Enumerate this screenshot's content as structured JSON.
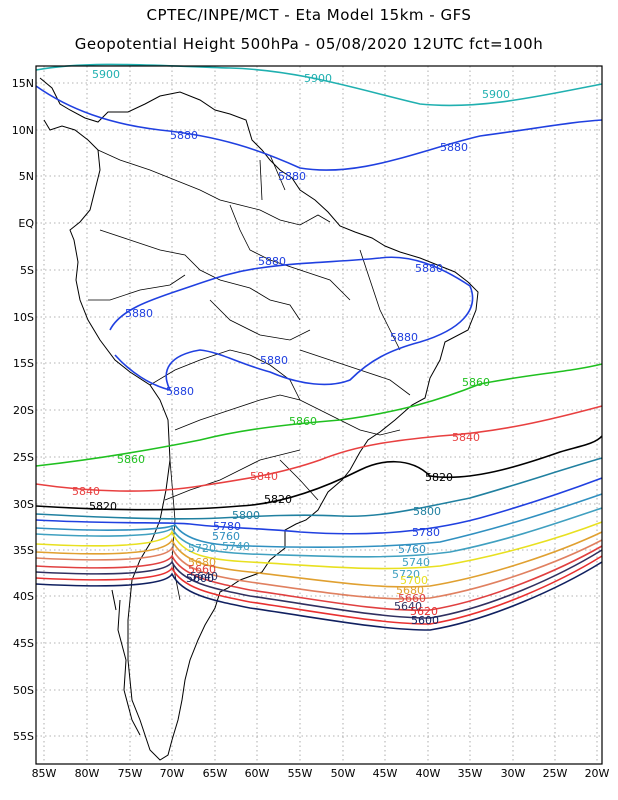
{
  "title_line1": "CPTEC/INPE/MCT -  Eta Model 15km - GFS",
  "title_line2": "Geopotential Height 500hPa - 05/08/2020 12UTC fct=100h",
  "lat_labels": [
    "15N",
    "10N",
    "5N",
    "EQ",
    "5S",
    "10S",
    "15S",
    "20S",
    "25S",
    "30S",
    "35S",
    "40S",
    "45S",
    "50S",
    "55S"
  ],
  "lon_labels": [
    "85W",
    "80W",
    "75W",
    "70W",
    "65W",
    "60W",
    "55W",
    "50W",
    "45W",
    "40W",
    "35W",
    "30W",
    "25W",
    "20W"
  ],
  "contour_labels": {
    "c5900": "5900",
    "c5880": "5880",
    "c5860": "5860",
    "c5840": "5840",
    "c5820": "5820",
    "c5800": "5800",
    "c5780": "5780",
    "c5760": "5760",
    "c5740": "5740",
    "c5720": "5720",
    "c5700": "5700",
    "c5680": "5680",
    "c5660": "5660",
    "c5640": "5640",
    "c5620": "5620",
    "c5600": "5600"
  },
  "colors": {
    "c5900": "#20b0b0",
    "c5880": "#2040e0",
    "c5860": "#20c020",
    "c5840": "#e84040",
    "c5820": "#000000",
    "c5800": "#2080a0",
    "c5780": "#2040e0",
    "c5760": "#3090c0",
    "c5740": "#40a0c0",
    "c5720": "#e8e020",
    "c5700": "#e0a030",
    "c5680": "#e08060",
    "c5660": "#e04040",
    "c5640": "#303060",
    "c5620": "#e83030",
    "c5600": "#102060"
  }
}
